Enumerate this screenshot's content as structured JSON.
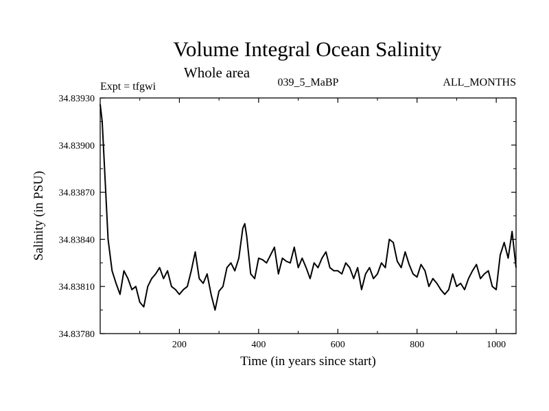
{
  "chart_data": {
    "type": "line",
    "title": "Volume Integral Ocean Salinity",
    "subtitle": "Whole area",
    "experiment": "Expt = tfgwi",
    "run_label": "039_5_MaBP",
    "months_label": "ALL_MONTHS",
    "xlabel": "Time (in years since start)",
    "ylabel": "Salinity (in PSU)",
    "xlim": [
      0,
      1050
    ],
    "ylim": [
      34.8378,
      34.8393
    ],
    "xticks": [
      200,
      400,
      600,
      800,
      1000
    ],
    "xtick_labels": [
      "200",
      "400",
      "600",
      "800",
      "1000"
    ],
    "yticks": [
      34.8378,
      34.8381,
      34.8384,
      34.8387,
      34.839,
      34.8393
    ],
    "ytick_labels": [
      "34.83780",
      "34.83810",
      "34.83840",
      "34.83870",
      "34.83900",
      "34.83930"
    ],
    "series": [
      {
        "name": "Salinity",
        "x": [
          0,
          5,
          10,
          20,
          30,
          40,
          50,
          60,
          70,
          80,
          90,
          100,
          110,
          120,
          130,
          140,
          150,
          160,
          170,
          180,
          190,
          200,
          210,
          220,
          230,
          240,
          250,
          260,
          270,
          280,
          290,
          300,
          310,
          320,
          330,
          340,
          350,
          360,
          365,
          370,
          380,
          390,
          400,
          410,
          420,
          430,
          440,
          450,
          460,
          470,
          480,
          490,
          500,
          510,
          520,
          530,
          540,
          550,
          560,
          570,
          580,
          590,
          600,
          610,
          620,
          630,
          640,
          650,
          660,
          670,
          680,
          690,
          700,
          710,
          720,
          730,
          740,
          750,
          760,
          770,
          780,
          790,
          800,
          810,
          820,
          830,
          840,
          850,
          860,
          870,
          880,
          890,
          900,
          910,
          920,
          930,
          940,
          950,
          960,
          970,
          980,
          990,
          1000,
          1010,
          1020,
          1030,
          1040,
          1050
        ],
        "values": [
          34.83926,
          34.83915,
          34.8389,
          34.8384,
          34.8382,
          34.83812,
          34.83805,
          34.8382,
          34.83815,
          34.83808,
          34.8381,
          34.838,
          34.83797,
          34.8381,
          34.83815,
          34.83818,
          34.83822,
          34.83815,
          34.8382,
          34.8381,
          34.83808,
          34.83805,
          34.83808,
          34.8381,
          34.8382,
          34.83832,
          34.83815,
          34.83812,
          34.83818,
          34.83805,
          34.83795,
          34.83807,
          34.8381,
          34.83822,
          34.83825,
          34.8382,
          34.83828,
          34.83847,
          34.8385,
          34.83842,
          34.83818,
          34.83815,
          34.83828,
          34.83827,
          34.83825,
          34.8383,
          34.83835,
          34.83818,
          34.83828,
          34.83826,
          34.83825,
          34.83835,
          34.83822,
          34.83828,
          34.83822,
          34.83815,
          34.83825,
          34.83822,
          34.83828,
          34.83832,
          34.83822,
          34.8382,
          34.8382,
          34.83818,
          34.83825,
          34.83822,
          34.83815,
          34.83822,
          34.83808,
          34.83818,
          34.83822,
          34.83815,
          34.83818,
          34.83825,
          34.83822,
          34.8384,
          34.83838,
          34.83826,
          34.83822,
          34.83832,
          34.83824,
          34.83818,
          34.83816,
          34.83824,
          34.8382,
          34.8381,
          34.83815,
          34.83812,
          34.83808,
          34.83805,
          34.83808,
          34.83818,
          34.8381,
          34.83812,
          34.83808,
          34.83815,
          34.8382,
          34.83824,
          34.83815,
          34.83818,
          34.8382,
          34.8381,
          34.83808,
          34.8383,
          34.83838,
          34.83828,
          34.83845,
          34.83822
        ]
      }
    ]
  }
}
